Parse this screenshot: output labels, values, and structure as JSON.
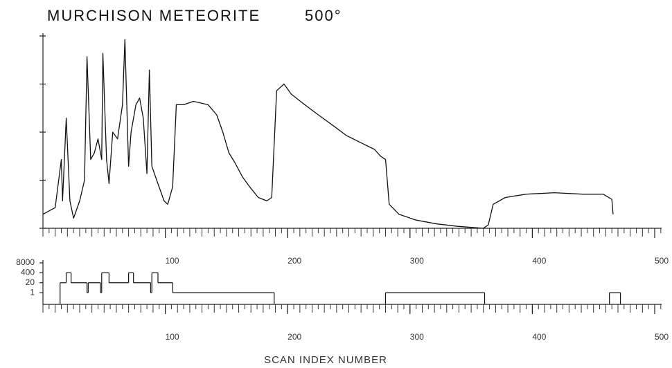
{
  "chart_data": [
    {
      "type": "line",
      "title": "MURCHISON METEORITE",
      "subtitle": "500°",
      "color": "#111111",
      "xlim": [
        0,
        500
      ],
      "xticks": [
        100,
        200,
        300,
        400,
        500
      ],
      "ylim": [
        0,
        4
      ],
      "yticks": [
        0,
        1,
        2,
        3,
        4
      ],
      "x": [
        0,
        10,
        15,
        16,
        19,
        22,
        25,
        30,
        34,
        36,
        39,
        42,
        45,
        48,
        49,
        52,
        54,
        57,
        61,
        65,
        67,
        70,
        72,
        76,
        79,
        82,
        85,
        87,
        89,
        93,
        99,
        102,
        106,
        109,
        115,
        123,
        135,
        142,
        147,
        152,
        157,
        163,
        169,
        176,
        183,
        187,
        191,
        197,
        203,
        214,
        225,
        237,
        248,
        259,
        271,
        276,
        280,
        283,
        291,
        305,
        322,
        339,
        360,
        364,
        368,
        378,
        395,
        418,
        441,
        458,
        465,
        466
      ],
      "series": [
        {
          "name": "intensity",
          "color": "#111111",
          "values": [
            0.29,
            0.43,
            1.43,
            0.57,
            2.29,
            0.57,
            0.21,
            0.57,
            1.0,
            3.57,
            1.43,
            1.57,
            1.86,
            1.43,
            3.64,
            1.43,
            0.93,
            2.0,
            1.86,
            2.57,
            3.93,
            1.29,
            2.0,
            2.57,
            2.71,
            2.29,
            1.14,
            3.29,
            1.29,
            1.0,
            0.57,
            0.5,
            0.86,
            2.57,
            2.57,
            2.64,
            2.57,
            2.36,
            2.0,
            1.57,
            1.36,
            1.07,
            0.86,
            0.64,
            0.57,
            0.64,
            2.86,
            3.0,
            2.79,
            2.57,
            2.36,
            2.14,
            1.93,
            1.79,
            1.64,
            1.5,
            1.43,
            0.5,
            0.29,
            0.17,
            0.09,
            0.04,
            0,
            0.07,
            0.5,
            0.64,
            0.71,
            0.74,
            0.71,
            0.71,
            0.6,
            0.29
          ]
        }
      ]
    },
    {
      "type": "step",
      "x_label": "SCAN INDEX NUMBER",
      "log_y": true,
      "xlim": [
        0,
        500
      ],
      "xticks": [
        100,
        200,
        300,
        400,
        500
      ],
      "ylim": [
        0.03,
        8000
      ],
      "yticks": [
        1,
        20,
        400,
        8000
      ],
      "x": [
        0,
        14,
        19,
        23,
        36,
        37,
        47,
        48,
        54,
        70,
        74,
        88,
        89,
        94,
        106,
        189,
        280,
        361,
        463,
        472
      ],
      "series": [
        {
          "name": "scale",
          "color": "#111111",
          "values": [
            null,
            20,
            400,
            20,
            1,
            20,
            1,
            400,
            20,
            400,
            20,
            1,
            400,
            20,
            1,
            null,
            1,
            null,
            1,
            null
          ]
        }
      ]
    }
  ]
}
